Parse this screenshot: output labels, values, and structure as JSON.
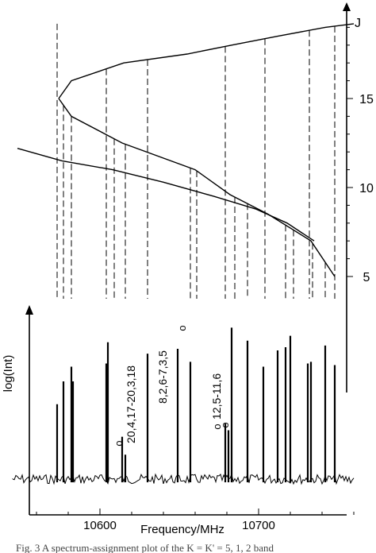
{
  "chart_data": [
    {
      "type": "line",
      "panel": "energy-level diagram",
      "ylabel": "J",
      "y_ticks": [
        5,
        10,
        15
      ],
      "ylim": [
        4,
        20
      ],
      "branch_upper": {
        "x": [
          10574,
          10582,
          10615,
          10655,
          10683,
          10712,
          10742,
          10760
        ],
        "y": [
          15,
          16,
          17,
          17.5,
          18,
          18.5,
          19,
          19.2
        ]
      },
      "branch_lower": {
        "x": [
          10574,
          10582,
          10614,
          10660,
          10682,
          10706,
          10733,
          10748
        ],
        "y": [
          15,
          14,
          12.5,
          11,
          9.6,
          8.5,
          7,
          5
        ]
      },
      "branch_third": {
        "x": [
          10548,
          10576,
          10608,
          10640,
          10672,
          10698,
          10718,
          10735
        ],
        "y": [
          12.2,
          11.5,
          11,
          10.3,
          9.5,
          8.8,
          8,
          7
        ]
      },
      "connector_lines_x": [
        10573,
        10577,
        10582,
        10604,
        10609,
        10616,
        10630,
        10657,
        10661,
        10679,
        10685,
        10693,
        10704,
        10717,
        10722,
        10732,
        10734,
        10742,
        10748
      ]
    },
    {
      "type": "bar",
      "panel": "spectrum",
      "xlabel": "Frequency/MHz",
      "ylabel": "log(Int)",
      "x_ticks": [
        10600,
        10700
      ],
      "xlim": [
        10542,
        10762
      ],
      "lines": [
        {
          "x": 10573,
          "y": 0.46
        },
        {
          "x": 10577,
          "y": 0.6
        },
        {
          "x": 10582,
          "y": 0.69
        },
        {
          "x": 10583,
          "y": 0.6
        },
        {
          "x": 10604,
          "y": 0.71
        },
        {
          "x": 10605,
          "y": 0.84
        },
        {
          "x": 10614,
          "y": 0.26
        },
        {
          "x": 10616,
          "y": 0.15
        },
        {
          "x": 10630,
          "y": 0.77
        },
        {
          "x": 10649,
          "y": 0.8
        },
        {
          "x": 10657,
          "y": 0.72
        },
        {
          "x": 10679,
          "y": 0.34
        },
        {
          "x": 10681,
          "y": 0.3
        },
        {
          "x": 10683,
          "y": 0.93
        },
        {
          "x": 10693,
          "y": 0.85
        },
        {
          "x": 10703,
          "y": 0.69
        },
        {
          "x": 10712,
          "y": 0.79
        },
        {
          "x": 10717,
          "y": 0.81
        },
        {
          "x": 10720,
          "y": 0.88
        },
        {
          "x": 10731,
          "y": 0.71
        },
        {
          "x": 10733,
          "y": 0.72
        },
        {
          "x": 10742,
          "y": 0.82
        },
        {
          "x": 10748,
          "y": 0.7
        }
      ],
      "annotations": [
        {
          "text": "20,4,17-20,3,18",
          "x": 10622
        },
        {
          "text": "8,2,6-7,3,5",
          "x": 10642
        },
        {
          "text": "12,5-11,6",
          "x": 10676
        }
      ],
      "markers": [
        {
          "text": "o",
          "x": 10614
        },
        {
          "text": "o",
          "x": 10654
        },
        {
          "text": "o",
          "x": 10676
        },
        {
          "text": "o",
          "x": 10681
        }
      ]
    }
  ],
  "caption": "Fig. 3  A spectrum-assignment plot of the K = K' = 5, 1, 2 band"
}
